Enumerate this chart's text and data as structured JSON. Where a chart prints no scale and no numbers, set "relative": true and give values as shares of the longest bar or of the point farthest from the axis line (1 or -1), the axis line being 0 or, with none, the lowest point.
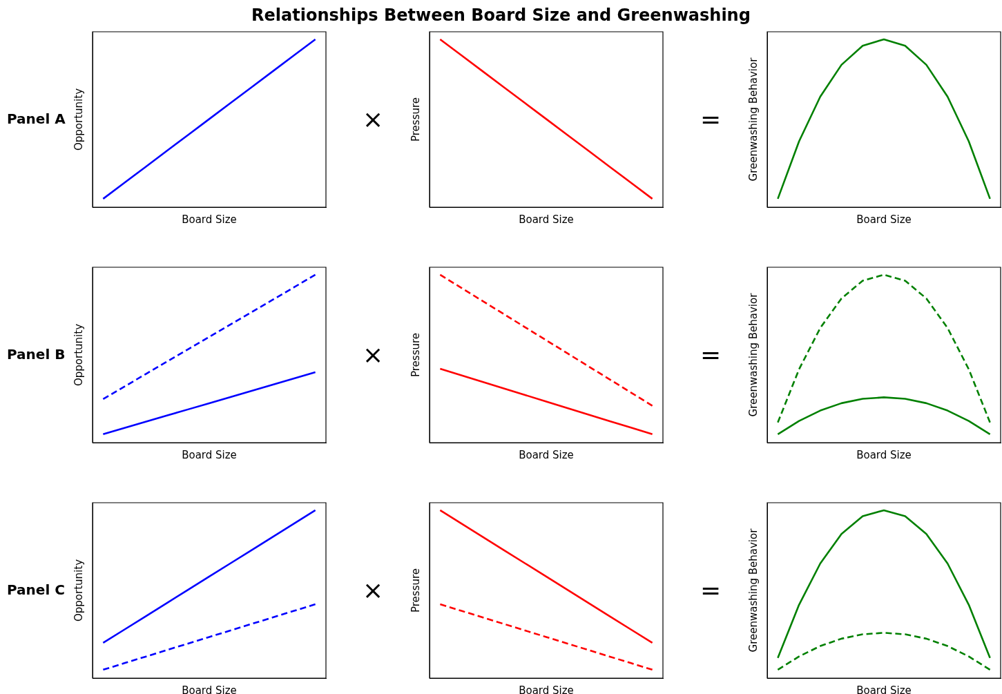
{
  "chart_data": [
    {
      "type": "line",
      "title": "Relationships Between Board Size and Greenwashing",
      "annotations": [
        "Panel A"
      ],
      "xlabel": "Board Size",
      "ylabel": "Opportunity",
      "relative": true,
      "marker": "none",
      "categories": [
        null,
        null,
        null,
        null,
        null,
        null,
        null,
        null,
        null,
        null,
        null
      ],
      "series": [
        {
          "color": "#0000ff",
          "line_style": "solid",
          "values": [
            0.05,
            0.145,
            0.24,
            0.335,
            0.43,
            0.525,
            0.62,
            0.715,
            0.81,
            0.905,
            1
          ]
        }
      ]
    },
    {
      "type": "line",
      "annotations": [
        "×"
      ],
      "xlabel": "Board Size",
      "ylabel": "Pressure",
      "relative": true,
      "marker": "none",
      "categories": [
        null,
        null,
        null,
        null,
        null,
        null,
        null,
        null,
        null,
        null,
        null
      ],
      "series": [
        {
          "color": "#ff0000",
          "line_style": "solid",
          "values": [
            1,
            0.905,
            0.81,
            0.715,
            0.62,
            0.525,
            0.43,
            0.335,
            0.24,
            0.145,
            0.05
          ]
        }
      ]
    },
    {
      "type": "line",
      "annotations": [
        "="
      ],
      "xlabel": "Board Size",
      "ylabel": "Greenwashing Behavior",
      "relative": true,
      "marker": "none",
      "categories": [
        null,
        null,
        null,
        null,
        null,
        null,
        null,
        null,
        null,
        null,
        null
      ],
      "series": [
        {
          "color": "#008000",
          "line_style": "solid",
          "values": [
            0.05,
            0.392,
            0.658,
            0.848,
            0.962,
            1,
            0.962,
            0.848,
            0.658,
            0.392,
            0.05
          ]
        }
      ]
    },
    {
      "type": "line",
      "annotations": [
        "Panel B"
      ],
      "xlabel": "Board Size",
      "ylabel": "Opportunity",
      "relative": true,
      "marker": "none",
      "categories": [
        null,
        null,
        null,
        null,
        null,
        null,
        null,
        null,
        null,
        null,
        null
      ],
      "series": [
        {
          "color": "#0000ff",
          "line_style": "dashed",
          "values": [
            0.26,
            0.334,
            0.408,
            0.482,
            0.556,
            0.63,
            0.704,
            0.778,
            0.852,
            0.926,
            1
          ]
        },
        {
          "color": "#0000ff",
          "line_style": "solid",
          "values": [
            0.05,
            0.087,
            0.124,
            0.161,
            0.198,
            0.235,
            0.272,
            0.309,
            0.346,
            0.383,
            0.42
          ]
        }
      ]
    },
    {
      "type": "line",
      "annotations": [
        "×"
      ],
      "xlabel": "Board Size",
      "ylabel": "Pressure",
      "relative": true,
      "marker": "none",
      "categories": [
        null,
        null,
        null,
        null,
        null,
        null,
        null,
        null,
        null,
        null,
        null
      ],
      "series": [
        {
          "color": "#ff0000",
          "line_style": "dashed",
          "values": [
            1,
            0.922,
            0.844,
            0.766,
            0.688,
            0.61,
            0.532,
            0.454,
            0.376,
            0.298,
            0.22
          ]
        },
        {
          "color": "#ff0000",
          "line_style": "solid",
          "values": [
            0.44,
            0.401,
            0.362,
            0.323,
            0.284,
            0.245,
            0.206,
            0.167,
            0.128,
            0.089,
            0.05
          ]
        }
      ]
    },
    {
      "type": "line",
      "annotations": [
        "="
      ],
      "xlabel": "Board Size",
      "ylabel": "Greenwashing Behavior",
      "relative": true,
      "marker": "none",
      "categories": [
        null,
        null,
        null,
        null,
        null,
        null,
        null,
        null,
        null,
        null,
        null
      ],
      "series": [
        {
          "color": "#008000",
          "line_style": "dashed",
          "values": [
            0.12,
            0.437,
            0.683,
            0.859,
            0.965,
            1,
            0.965,
            0.859,
            0.683,
            0.437,
            0.12
          ]
        },
        {
          "color": "#008000",
          "line_style": "solid",
          "values": [
            0.05,
            0.129,
            0.191,
            0.235,
            0.261,
            0.27,
            0.261,
            0.235,
            0.191,
            0.129,
            0.05
          ]
        }
      ]
    },
    {
      "type": "line",
      "annotations": [
        "Panel C"
      ],
      "xlabel": "Board Size",
      "ylabel": "Opportunity",
      "relative": true,
      "marker": "none",
      "categories": [
        null,
        null,
        null,
        null,
        null,
        null,
        null,
        null,
        null,
        null,
        null
      ],
      "series": [
        {
          "color": "#0000ff",
          "line_style": "solid",
          "values": [
            0.21,
            0.289,
            0.368,
            0.447,
            0.526,
            0.605,
            0.684,
            0.763,
            0.842,
            0.921,
            1
          ]
        },
        {
          "color": "#0000ff",
          "line_style": "dashed",
          "values": [
            0.05,
            0.089,
            0.128,
            0.167,
            0.206,
            0.245,
            0.284,
            0.323,
            0.362,
            0.401,
            0.44
          ]
        }
      ]
    },
    {
      "type": "line",
      "annotations": [
        "×"
      ],
      "xlabel": "Board Size",
      "ylabel": "Pressure",
      "relative": true,
      "marker": "none",
      "categories": [
        null,
        null,
        null,
        null,
        null,
        null,
        null,
        null,
        null,
        null,
        null
      ],
      "series": [
        {
          "color": "#ff0000",
          "line_style": "solid",
          "values": [
            1,
            0.921,
            0.842,
            0.763,
            0.684,
            0.605,
            0.526,
            0.447,
            0.368,
            0.289,
            0.21
          ]
        },
        {
          "color": "#ff0000",
          "line_style": "dashed",
          "values": [
            0.44,
            0.401,
            0.362,
            0.323,
            0.284,
            0.245,
            0.206,
            0.167,
            0.128,
            0.089,
            0.05
          ]
        }
      ]
    },
    {
      "type": "line",
      "annotations": [
        "="
      ],
      "xlabel": "Board Size",
      "ylabel": "Greenwashing Behavior",
      "relative": true,
      "marker": "none",
      "categories": [
        null,
        null,
        null,
        null,
        null,
        null,
        null,
        null,
        null,
        null,
        null
      ],
      "series": [
        {
          "color": "#008000",
          "line_style": "solid",
          "values": [
            0.12,
            0.437,
            0.683,
            0.859,
            0.965,
            1,
            0.965,
            0.859,
            0.683,
            0.437,
            0.12
          ]
        },
        {
          "color": "#008000",
          "line_style": "dashed",
          "values": [
            0.05,
            0.129,
            0.191,
            0.235,
            0.261,
            0.27,
            0.261,
            0.235,
            0.191,
            0.129,
            0.05
          ]
        }
      ]
    }
  ]
}
